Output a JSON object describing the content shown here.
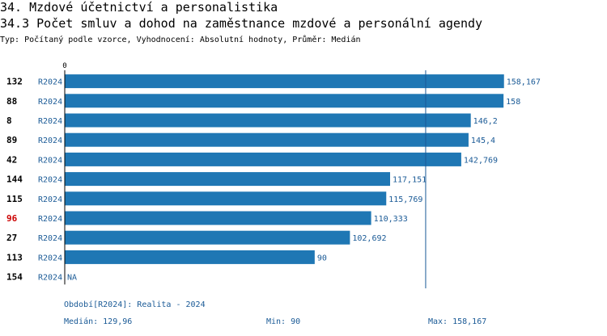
{
  "header": {
    "section_title": "34. Mzdové účetnictví a personalistika",
    "chart_title": "34.3 Počet smluv a dohod na zaměstnance mzdové a personální agendy",
    "subtitle": "Typ: Počítaný podle vzorce, Vyhodnocení: Absolutní hodnoty, Průměr: Medián"
  },
  "colors": {
    "bar": "#1f77b4",
    "value_text": "#1a5a96",
    "highlight_id": "#cc0000",
    "axis": "#000000",
    "median_line": "#1a5a96"
  },
  "chart_data": {
    "type": "bar",
    "orientation": "horizontal",
    "xlim": [
      0,
      175
    ],
    "x_tick_labels": [
      "0"
    ],
    "median_line_value": 129.96,
    "highlight_row_id": "96",
    "rows": [
      {
        "id": "132",
        "period": "R2024",
        "value": 158.167,
        "label": "158,167"
      },
      {
        "id": "88",
        "period": "R2024",
        "value": 158,
        "label": "158"
      },
      {
        "id": "8",
        "period": "R2024",
        "value": 146.2,
        "label": "146,2"
      },
      {
        "id": "89",
        "period": "R2024",
        "value": 145.4,
        "label": "145,4"
      },
      {
        "id": "42",
        "period": "R2024",
        "value": 142.769,
        "label": "142,769"
      },
      {
        "id": "144",
        "period": "R2024",
        "value": 117.151,
        "label": "117,151"
      },
      {
        "id": "115",
        "period": "R2024",
        "value": 115.769,
        "label": "115,769"
      },
      {
        "id": "96",
        "period": "R2024",
        "value": 110.333,
        "label": "110,333"
      },
      {
        "id": "27",
        "period": "R2024",
        "value": 102.692,
        "label": "102,692"
      },
      {
        "id": "113",
        "period": "R2024",
        "value": 90,
        "label": "90"
      },
      {
        "id": "154",
        "period": "R2024",
        "value": null,
        "label": "NA"
      }
    ]
  },
  "footer": {
    "period_legend": "Období[R2024]: Realita - 2024",
    "median": "Medián: 129,96",
    "min": "Min: 90",
    "max": "Max: 158,167"
  }
}
